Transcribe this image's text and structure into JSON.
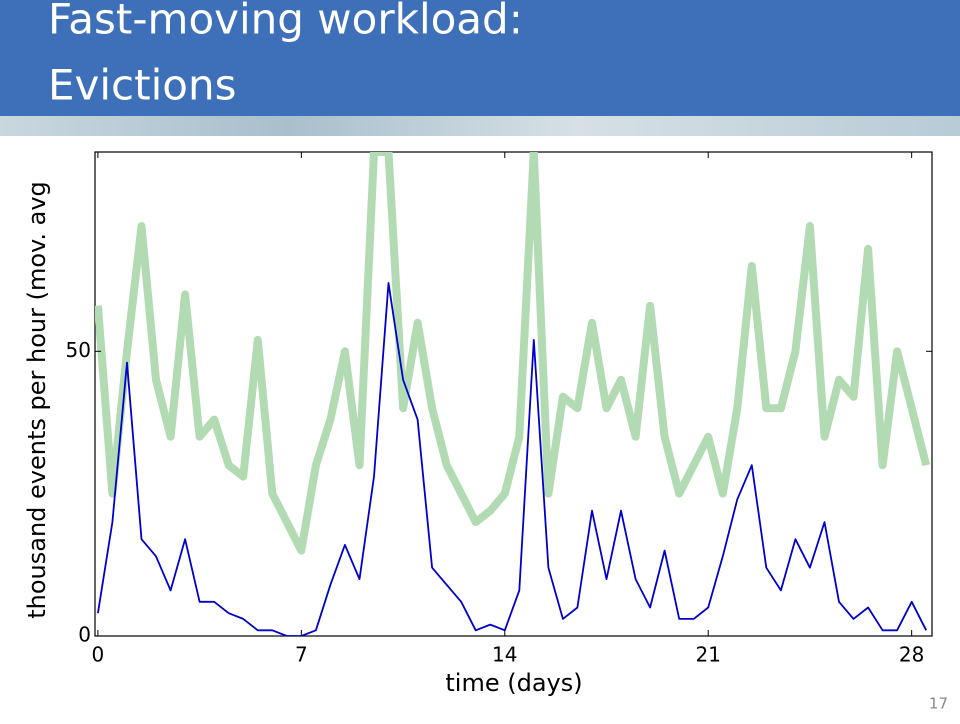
{
  "header": {
    "title_lines": [
      "Fast-moving workload:",
      "Evictions"
    ]
  },
  "page_number": "17",
  "chart_data": {
    "type": "line",
    "x_label": "time (days)",
    "y_label": "thousand events per hour (mov. avg",
    "x": [
      0,
      0.5,
      1,
      1.5,
      2,
      2.5,
      3,
      3.5,
      4,
      4.5,
      5,
      5.5,
      6,
      6.5,
      7,
      7.5,
      8,
      8.5,
      9,
      9.5,
      10,
      10.5,
      11,
      11.5,
      12,
      12.5,
      13,
      13.5,
      14,
      14.5,
      15,
      15.5,
      16,
      16.5,
      17,
      17.5,
      18,
      18.5,
      19,
      19.5,
      20,
      20.5,
      21,
      21.5,
      22,
      22.5,
      23,
      23.5,
      24,
      24.5,
      25,
      25.5,
      26,
      26.5,
      27,
      27.5,
      28,
      28.5
    ],
    "series": [
      {
        "color": "#b3dbb3",
        "width": 8,
        "values": [
          58,
          25,
          50,
          72,
          45,
          35,
          60,
          35,
          38,
          30,
          28,
          52,
          25,
          20,
          15,
          30,
          38,
          50,
          30,
          85,
          85,
          40,
          55,
          40,
          30,
          25,
          20,
          22,
          25,
          35,
          85,
          25,
          42,
          40,
          55,
          40,
          45,
          35,
          58,
          35,
          25,
          30,
          35,
          25,
          40,
          65,
          40,
          40,
          50,
          72,
          35,
          45,
          42,
          68,
          30,
          50,
          40,
          30
        ]
      },
      {
        "color": "#0000cc",
        "width": 1.8,
        "values": [
          4,
          20,
          48,
          17,
          14,
          8,
          17,
          6,
          6,
          4,
          3,
          1,
          1,
          0,
          0,
          1,
          9,
          16,
          10,
          28,
          62,
          45,
          38,
          12,
          9,
          6,
          1,
          2,
          1,
          8,
          52,
          12,
          3,
          5,
          22,
          10,
          22,
          10,
          5,
          15,
          3,
          3,
          5,
          14,
          24,
          30,
          12,
          8,
          17,
          12,
          20,
          6,
          3,
          5,
          1,
          1,
          6,
          1
        ]
      }
    ],
    "xlim": [
      -0.1,
      28.7
    ],
    "ylim": [
      0,
      85
    ],
    "xticks": [
      0,
      7,
      14,
      21,
      28
    ],
    "yticks": [
      0,
      50
    ],
    "grid": false
  }
}
